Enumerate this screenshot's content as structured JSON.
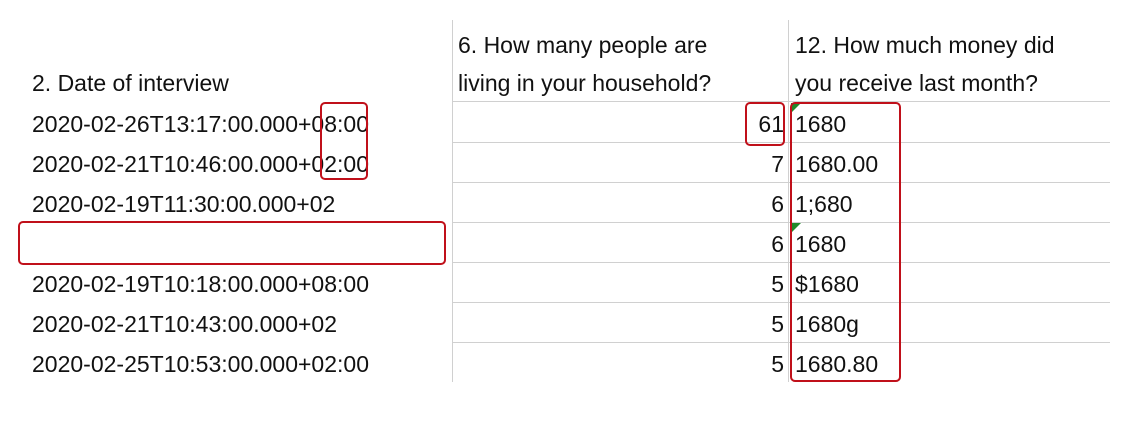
{
  "headers": {
    "col_a": [
      "",
      "2.  Date of interview"
    ],
    "col_b": [
      "6. How many people are",
      "living in your household?"
    ],
    "col_c": [
      "12. How much money did",
      "you receive last month?"
    ]
  },
  "rows": [
    {
      "date": "2020-02-26T13:17:00.000+08:00",
      "people": "61",
      "money": "1680"
    },
    {
      "date": "2020-02-21T10:46:00.000+02:00",
      "people": "7",
      "money": "1680.00"
    },
    {
      "date": "2020-02-19T11:30:00.000+02",
      "people": "6",
      "money": "1;680"
    },
    {
      "date": "",
      "people": "6",
      "money": "1680"
    },
    {
      "date": "2020-02-19T10:18:00.000+08:00",
      "people": "5",
      "money": "$1680"
    },
    {
      "date": "2020-02-21T10:43:00.000+02",
      "people": "5",
      "money": "1680g"
    },
    {
      "date": "2020-02-25T10:53:00.000+02:00",
      "people": "5",
      "money": "1680.80"
    }
  ],
  "colors": {
    "highlight": "#c0101a",
    "comment_flag": "#1f8a2a",
    "gridline": "#d0d0d0"
  }
}
